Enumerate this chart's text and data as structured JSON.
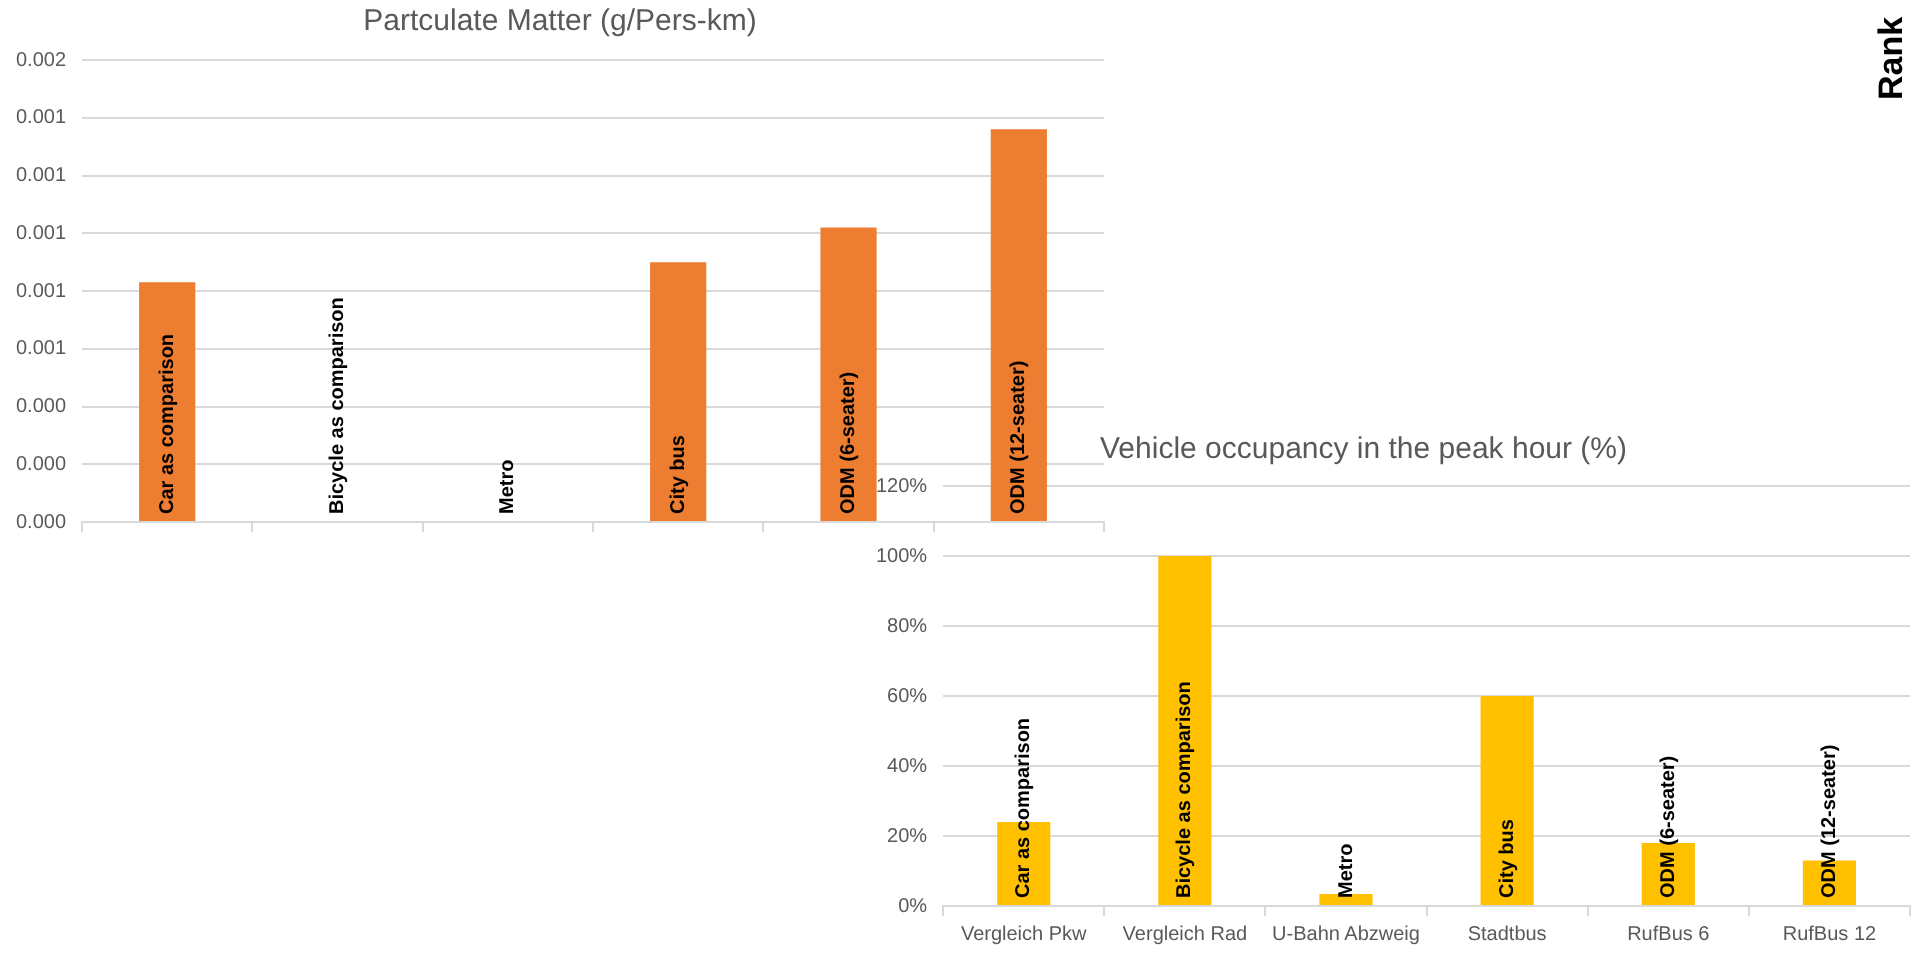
{
  "chart_data": [
    {
      "type": "bar",
      "title": "Partculate Matter (g/Pers-km)",
      "categories": [
        "Car as comparison",
        "Bicycle as comparison",
        "Metro",
        "City bus",
        "ODM (6-seater)",
        "ODM (12-seater)"
      ],
      "values": [
        0.00083,
        0,
        0,
        0.0009,
        0.00102,
        0.00136
      ],
      "color": "#ed7d31",
      "ylim": [
        0,
        0.0016
      ],
      "yticks": [
        {
          "value": 0,
          "label": "0.000"
        },
        {
          "value": 0.0002,
          "label": "0.000"
        },
        {
          "value": 0.0004,
          "label": "0.000"
        },
        {
          "value": 0.0006,
          "label": "0.001"
        },
        {
          "value": 0.0008,
          "label": "0.001"
        },
        {
          "value": 0.001,
          "label": "0.001"
        },
        {
          "value": 0.0012,
          "label": "0.001"
        },
        {
          "value": 0.0014,
          "label": "0.001"
        },
        {
          "value": 0.0016,
          "label": "0.002"
        }
      ],
      "grid": "y",
      "legend": false
    },
    {
      "type": "bar",
      "title": "Vehicle occupancy in the peak hour (%)",
      "categories": [
        "Vergleich Pkw",
        "Vergleich Rad",
        "U-Bahn Abzweig",
        "Stadtbus",
        "RufBus 6",
        "RufBus 12"
      ],
      "values": [
        24,
        100,
        3.4,
        60,
        18,
        13
      ],
      "color": "#ffc000",
      "ylim": [
        0,
        120
      ],
      "yticks": [
        {
          "value": 0,
          "label": "0%"
        },
        {
          "value": 20,
          "label": "20%"
        },
        {
          "value": 40,
          "label": "40%"
        },
        {
          "value": 60,
          "label": "60%"
        },
        {
          "value": 80,
          "label": "80%"
        },
        {
          "value": 100,
          "label": "100%"
        },
        {
          "value": 120,
          "label": "120%"
        }
      ],
      "grid": "y",
      "legend": false,
      "annotations": [
        "Car as comparison",
        "Bicycle as comparison",
        "Metro",
        "City bus",
        "ODM (6-seater)",
        "ODM (12-seater)",
        "Rank"
      ]
    }
  ]
}
